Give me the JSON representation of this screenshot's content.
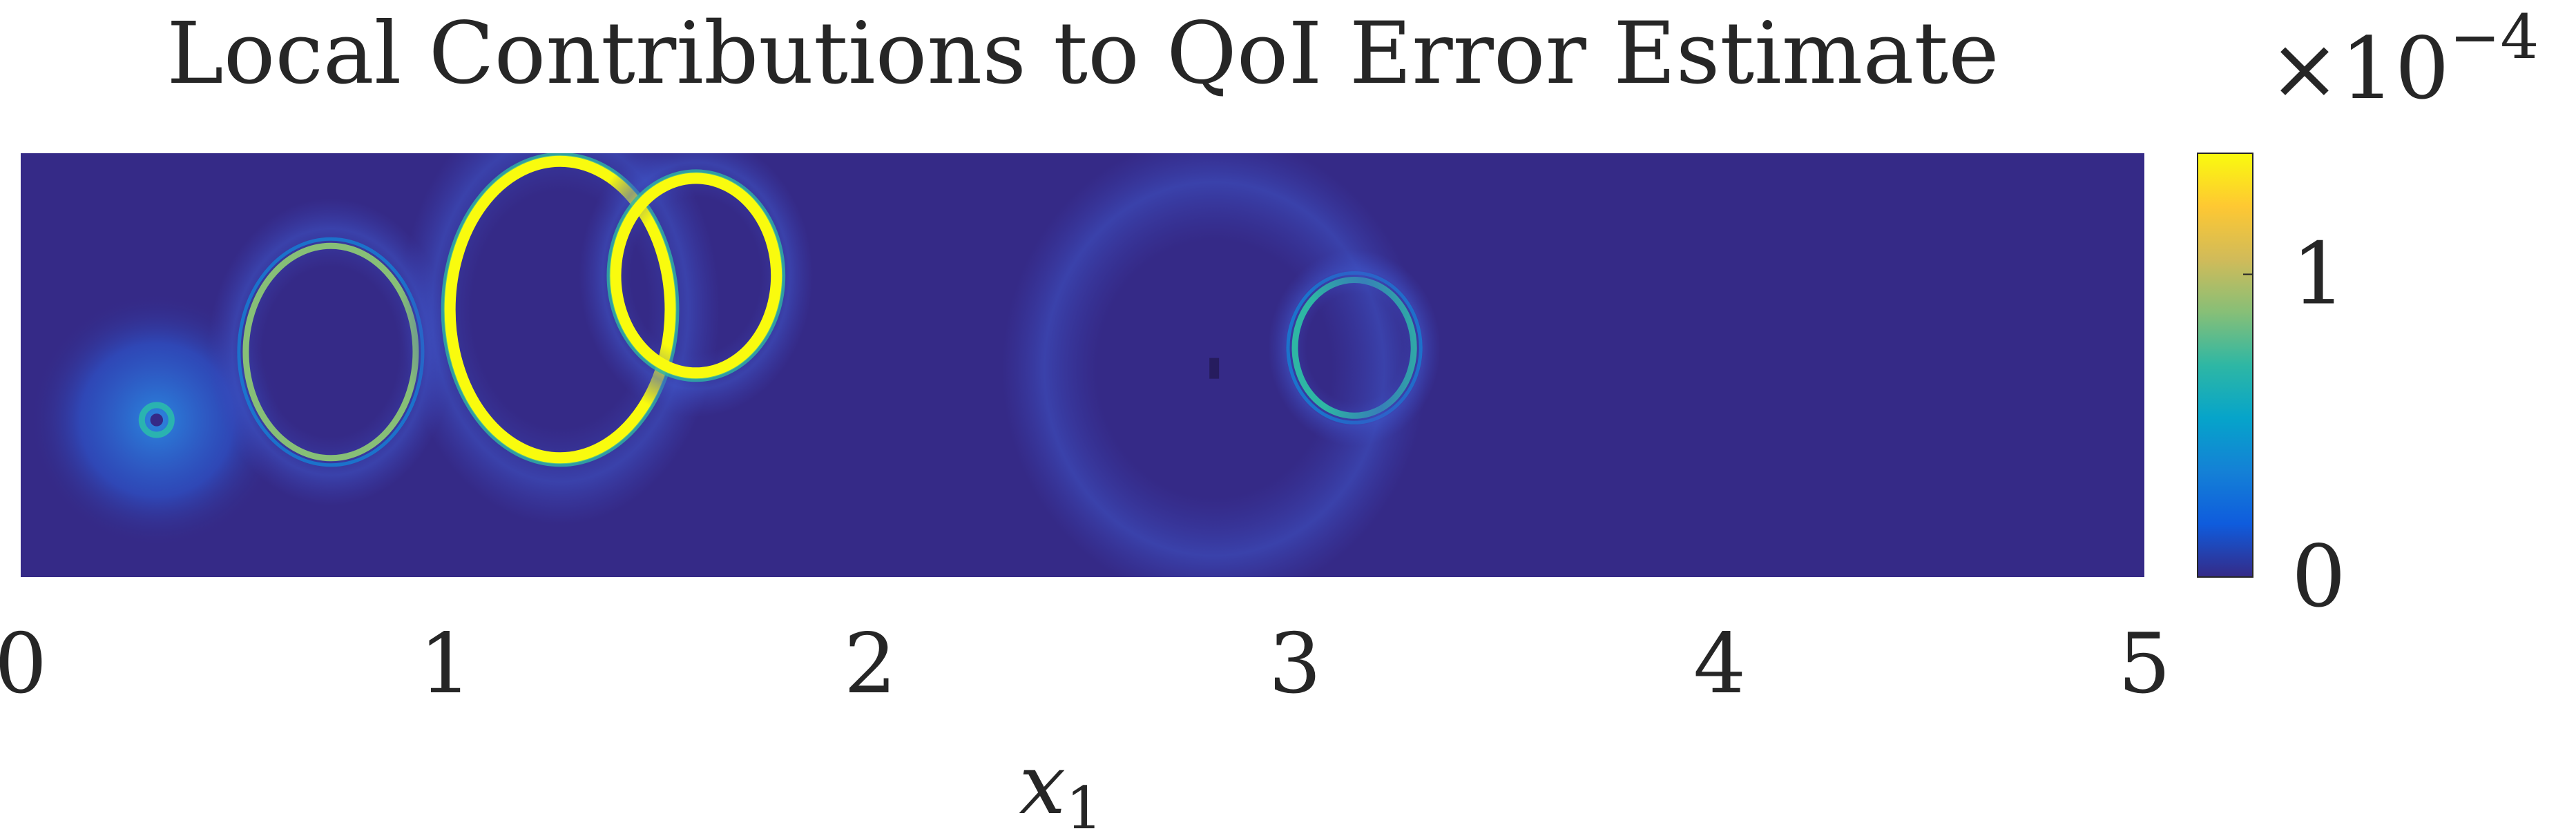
{
  "chart_data": {
    "type": "heatmap",
    "title": "Local Contributions to QoI Error Estimate",
    "xlabel": "x",
    "xlabel_subscript": "1",
    "xlim": [
      0,
      5
    ],
    "x_ticks": [
      0,
      1,
      2,
      3,
      4,
      5
    ],
    "x_tick_labels": [
      "0",
      "1",
      "2",
      "3",
      "4",
      "5"
    ],
    "colorbar": {
      "colormap": "parula",
      "range": [
        0,
        1.4
      ],
      "ticks": [
        0,
        1
      ],
      "tick_labels": [
        "0",
        "1"
      ],
      "exponent_label": "×10",
      "exponent": "−4",
      "colors": [
        "#352a87",
        "#0f5cdd",
        "#1481d6",
        "#06a4ca",
        "#2eb7a4",
        "#87bf77",
        "#d1bb59",
        "#fec832",
        "#f9fb0e"
      ]
    },
    "background_value": 0.0,
    "features": [
      {
        "kind": "blob",
        "cx": 0.32,
        "cy": 0.37,
        "r": 0.3,
        "peak": 0.45
      },
      {
        "kind": "ring",
        "cx": 0.73,
        "cy": 0.53,
        "rx": 0.2,
        "ry": 0.25,
        "peak": 0.8
      },
      {
        "kind": "ring",
        "cx": 1.27,
        "cy": 0.63,
        "rx": 0.26,
        "ry": 0.35,
        "peak": 1.4
      },
      {
        "kind": "ring",
        "cx": 1.59,
        "cy": 0.71,
        "rx": 0.19,
        "ry": 0.23,
        "peak": 1.4
      },
      {
        "kind": "ring",
        "cx": 3.14,
        "cy": 0.54,
        "rx": 0.14,
        "ry": 0.16,
        "peak": 0.7
      },
      {
        "kind": "dot",
        "cx": 2.81,
        "cy": 0.49,
        "peak": 0.1
      }
    ]
  }
}
